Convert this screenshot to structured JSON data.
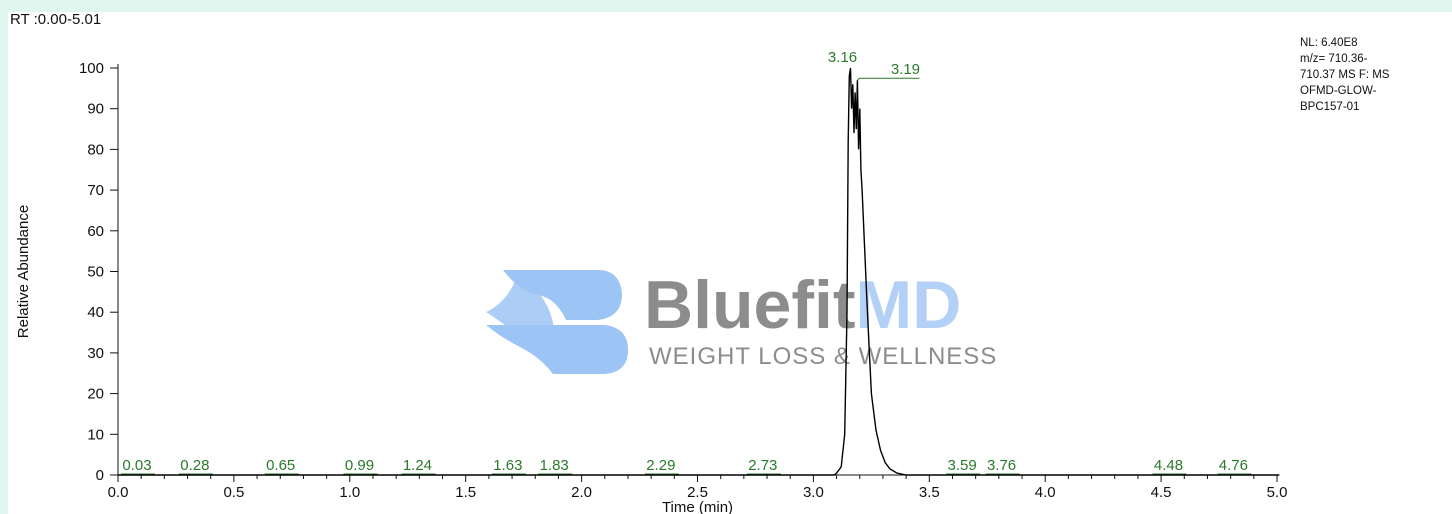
{
  "header": {
    "rt_range": "RT :0.00-5.01"
  },
  "info": {
    "lines": [
      "NL: 6.40E8",
      "m/z= 710.36-",
      "710.37 MS  F: MS",
      "OFMD-GLOW-",
      "BPC157-01"
    ]
  },
  "watermark": {
    "brand_a": "Bluefit",
    "brand_b": "MD",
    "tagline": "WEIGHT LOSS & WELLNESS",
    "color_a": "#8c8c8c",
    "color_b": "#b3d0f7",
    "logo_color": "#9cc4f5"
  },
  "chart_data": {
    "type": "line",
    "xlabel": "Time (min)",
    "ylabel": "Relative Abundance",
    "xlim": [
      0.0,
      5.0
    ],
    "ylim": [
      0,
      100
    ],
    "x_ticks": [
      "0.0",
      "0.5",
      "1.0",
      "1.5",
      "2.0",
      "2.5",
      "3.0",
      "3.5",
      "4.0",
      "4.5",
      "5.0"
    ],
    "y_ticks": [
      "0",
      "10",
      "20",
      "30",
      "40",
      "50",
      "60",
      "70",
      "80",
      "90",
      "100"
    ],
    "line_color": "#000000",
    "label_color": "#2a7a2a",
    "series": [
      {
        "x": [
          0.0,
          3.09,
          3.1,
          3.12,
          3.135,
          3.145,
          3.15,
          3.155,
          3.16,
          3.165,
          3.17,
          3.175,
          3.18,
          3.185,
          3.19,
          3.195,
          3.2,
          3.205,
          3.21,
          3.22,
          3.23,
          3.24,
          3.25,
          3.27,
          3.29,
          3.31,
          3.33,
          3.36,
          3.4,
          5.01
        ],
        "y": [
          0,
          0,
          0.5,
          2,
          10,
          40,
          82,
          98,
          100,
          90,
          96,
          84,
          94,
          85,
          97,
          80,
          90,
          75,
          70,
          57,
          44,
          32,
          20,
          11,
          6,
          3,
          1.5,
          0.5,
          0,
          0
        ]
      }
    ],
    "peak_labels": [
      {
        "x": 0.03,
        "label": "0.03"
      },
      {
        "x": 0.28,
        "label": "0.28"
      },
      {
        "x": 0.65,
        "label": "0.65"
      },
      {
        "x": 0.99,
        "label": "0.99"
      },
      {
        "x": 1.24,
        "label": "1.24"
      },
      {
        "x": 1.63,
        "label": "1.63"
      },
      {
        "x": 1.83,
        "label": "1.83"
      },
      {
        "x": 2.29,
        "label": "2.29"
      },
      {
        "x": 2.73,
        "label": "2.73"
      },
      {
        "x": 3.59,
        "label": "3.59"
      },
      {
        "x": 3.76,
        "label": "3.76"
      },
      {
        "x": 4.48,
        "label": "4.48"
      },
      {
        "x": 4.76,
        "label": "4.76"
      }
    ],
    "major_peak_labels": [
      {
        "x": 3.16,
        "y": 100,
        "label": "3.16"
      },
      {
        "x": 3.19,
        "y": 97,
        "label": "3.19"
      }
    ]
  }
}
